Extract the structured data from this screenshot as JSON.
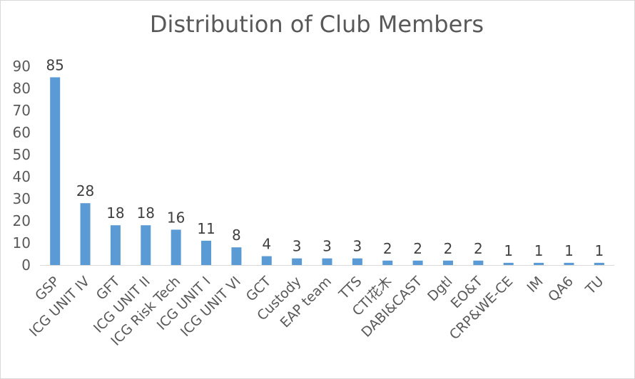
{
  "chart_data": {
    "type": "bar",
    "title": "Distribution of Club Members",
    "xlabel": "",
    "ylabel": "",
    "ylim": [
      0,
      90
    ],
    "yticks": [
      0,
      10,
      20,
      30,
      40,
      50,
      60,
      70,
      80,
      90
    ],
    "grid": false,
    "legend": "none",
    "bar_color": "#5b9bd5",
    "categories": [
      "GSP",
      "ICG UNIT IV",
      "GFT",
      "ICG UNIT II",
      "ICG Risk Tech",
      "ICG UNIT I",
      "ICG UNIT VI",
      "GCT",
      "Custody",
      "EAP team",
      "TTS",
      "CTI花木",
      "DABI&CAST",
      "Dgtl",
      "EO&T",
      "CRP&WE-CE",
      "IM",
      "QA6",
      "TU"
    ],
    "values": [
      85,
      28,
      18,
      18,
      16,
      11,
      8,
      4,
      3,
      3,
      3,
      2,
      2,
      2,
      2,
      1,
      1,
      1,
      1
    ]
  }
}
